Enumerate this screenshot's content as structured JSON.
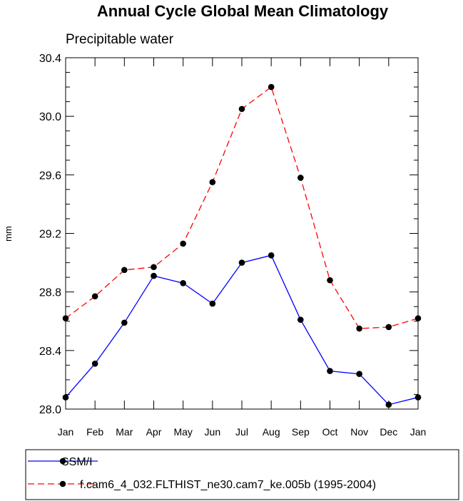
{
  "chart_data": {
    "type": "line",
    "title": "Annual Cycle Global Mean Climatology",
    "subtitle": "Precipitable water",
    "xlabel": "",
    "ylabel": "mm",
    "categories": [
      "Jan",
      "Feb",
      "Mar",
      "Apr",
      "May",
      "Jun",
      "Jul",
      "Aug",
      "Sep",
      "Oct",
      "Nov",
      "Dec",
      "Jan"
    ],
    "ylim": [
      28.0,
      30.4
    ],
    "yticks": [
      "28.0",
      "28.4",
      "28.8",
      "29.2",
      "29.6",
      "30.0",
      "30.4"
    ],
    "ytick_values": [
      28.0,
      28.4,
      28.8,
      29.2,
      29.6,
      30.0,
      30.4
    ],
    "y_minor_step": 0.1,
    "grid": false,
    "legend_position": "bottom",
    "series": [
      {
        "name": "SSM/I",
        "color": "#0000ff",
        "line_style": "solid",
        "marker": "filled-circle",
        "values": [
          28.08,
          28.31,
          28.59,
          28.91,
          28.86,
          28.72,
          29.0,
          29.05,
          28.61,
          28.26,
          28.24,
          28.03,
          28.08
        ]
      },
      {
        "name": "f.cam6_4_032.FLTHIST_ne30.cam7_ke.005b (1995-2004)",
        "color": "#ff0000",
        "line_style": "dashed",
        "marker": "filled-circle",
        "values": [
          28.62,
          28.77,
          28.95,
          28.97,
          29.13,
          29.55,
          30.05,
          30.2,
          29.58,
          28.88,
          28.55,
          28.56,
          28.62
        ]
      }
    ]
  }
}
